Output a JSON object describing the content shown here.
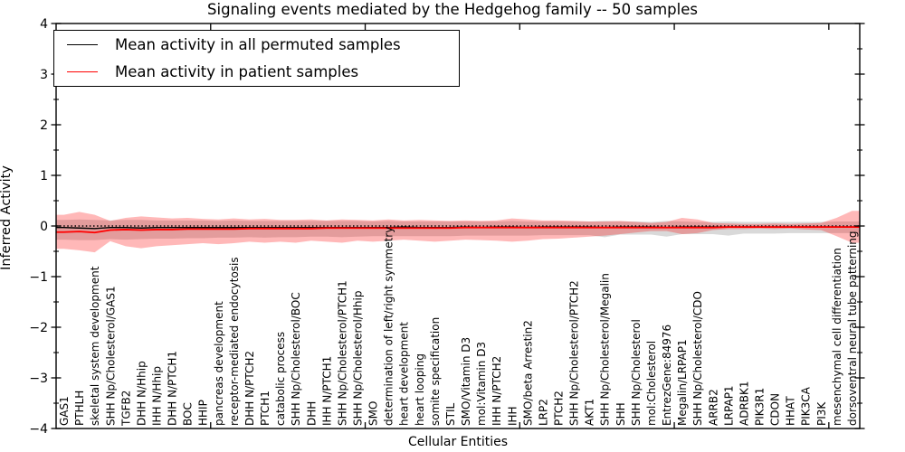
{
  "chart_data": {
    "type": "line",
    "title": "Signaling events mediated by the Hedgehog family -- 50 samples",
    "xlabel": "Cellular Entities",
    "ylabel": "Inferred Activity",
    "ylim": [
      -4,
      4
    ],
    "grid": false,
    "background": "#ffffff",
    "axis_color": "#000000",
    "ytick_labels": [
      "4",
      "3",
      "2",
      "1",
      "0",
      "−1",
      "−2",
      "−3",
      "−4"
    ],
    "ytick_values": [
      4,
      3,
      2,
      1,
      0,
      -1,
      -2,
      -3,
      -4
    ],
    "ytick_minor_step": 0.5,
    "xtick_top_values": [
      10,
      20,
      30,
      40,
      50
    ],
    "legend": {
      "position": "upper-left",
      "entries": [
        {
          "label": "Mean activity in all permuted samples",
          "color": "#000000"
        },
        {
          "label": "Mean activity in patient samples",
          "color": "#ff0000"
        }
      ]
    },
    "categories": [
      "GAS1",
      "PTHLH",
      "skeletal system development",
      "SHH Np/Cholesterol/GAS1",
      "TGFB2",
      "DHH N/Hhip",
      "IHH N/Hhip",
      "DHH N/PTCH1",
      "BOC",
      "HHIP",
      "pancreas development",
      "receptor-mediated endocytosis",
      "DHH N/PTCH2",
      "PTCH1",
      "catabolic process",
      "SHH Np/Cholesterol/BOC",
      "DHH",
      "IHH N/PTCH1",
      "SHH Np/Cholesterol/PTCH1",
      "SHH Np/Cholesterol/Hhip",
      "SMO",
      "determination of left/right symmetry",
      "heart development",
      "heart looping",
      "somite specification",
      "STIL",
      "SMO/Vitamin D3",
      "mol:Vitamin D3",
      "IHH N/PTCH2",
      "IHH",
      "SMO/beta Arrestin2",
      "LRP2",
      "PTCH2",
      "SHH Np/Cholesterol/PTCH2",
      "AKT1",
      "SHH Np/Cholesterol/Megalin",
      "SHH",
      "SHH Np/Cholesterol",
      "mol:Cholesterol",
      "EntrezGene:84976",
      "Megalin/LRPAP1",
      "SHH Np/Cholesterol/CDO",
      "ARRB2",
      "LRPAP1",
      "ADRBK1",
      "PIK3R1",
      "CDON",
      "HHAT",
      "PIK3CA",
      "PI3K",
      "mesenchymal cell differentiation",
      "dorsoventral neural tube patterning"
    ],
    "series": [
      {
        "name": "Mean activity in all permuted samples",
        "color": "#000000",
        "style": "solid",
        "values": [
          -0.03,
          -0.04,
          -0.05,
          -0.03,
          -0.03,
          -0.04,
          -0.03,
          -0.03,
          -0.03,
          -0.03,
          -0.03,
          -0.03,
          -0.03,
          -0.03,
          -0.03,
          -0.03,
          -0.03,
          -0.03,
          -0.03,
          -0.03,
          -0.03,
          -0.03,
          -0.02,
          -0.03,
          -0.03,
          -0.03,
          -0.02,
          -0.03,
          -0.02,
          -0.02,
          -0.03,
          -0.02,
          -0.02,
          -0.02,
          -0.02,
          -0.03,
          -0.02,
          -0.02,
          -0.02,
          -0.03,
          -0.02,
          -0.02,
          -0.02,
          -0.02,
          -0.02,
          -0.02,
          -0.02,
          -0.02,
          -0.02,
          -0.02,
          -0.02,
          -0.02
        ]
      },
      {
        "name": "Mean activity in patient samples",
        "color": "#ff0000",
        "style": "solid",
        "values": [
          -0.12,
          -0.11,
          -0.13,
          -0.08,
          -0.07,
          -0.08,
          -0.07,
          -0.07,
          -0.06,
          -0.06,
          -0.06,
          -0.06,
          -0.05,
          -0.05,
          -0.05,
          -0.05,
          -0.05,
          -0.04,
          -0.04,
          -0.04,
          -0.04,
          -0.04,
          -0.04,
          -0.04,
          -0.04,
          -0.04,
          -0.03,
          -0.03,
          -0.03,
          -0.03,
          -0.03,
          -0.03,
          -0.03,
          -0.03,
          -0.03,
          -0.03,
          -0.03,
          -0.03,
          -0.03,
          -0.03,
          -0.03,
          -0.03,
          -0.03,
          -0.02,
          -0.02,
          -0.02,
          -0.02,
          -0.02,
          -0.02,
          -0.02,
          -0.02,
          -0.02
        ]
      },
      {
        "name": "zero reference",
        "color": "#000000",
        "style": "dotted",
        "constant": 0
      }
    ],
    "bands": [
      {
        "name": "permuted activity range",
        "color": "#787878",
        "opacity": 0.28,
        "top": [
          0.12,
          0.13,
          0.12,
          0.11,
          0.12,
          0.12,
          0.11,
          0.11,
          0.11,
          0.11,
          0.1,
          0.11,
          0.1,
          0.1,
          0.1,
          0.1,
          0.1,
          0.1,
          0.1,
          0.1,
          0.09,
          0.1,
          0.09,
          0.09,
          0.09,
          0.09,
          0.09,
          0.09,
          0.09,
          0.1,
          0.09,
          0.09,
          0.09,
          0.09,
          0.09,
          0.1,
          0.09,
          0.09,
          0.08,
          0.1,
          0.09,
          0.08,
          0.08,
          0.09,
          0.08,
          0.08,
          0.08,
          0.08,
          0.08,
          0.08,
          0.09,
          0.09
        ],
        "bottom": [
          -0.27,
          -0.28,
          -0.28,
          -0.26,
          -0.27,
          -0.26,
          -0.25,
          -0.25,
          -0.24,
          -0.24,
          -0.23,
          -0.23,
          -0.22,
          -0.23,
          -0.22,
          -0.22,
          -0.21,
          -0.21,
          -0.22,
          -0.21,
          -0.2,
          -0.2,
          -0.2,
          -0.2,
          -0.2,
          -0.2,
          -0.19,
          -0.19,
          -0.19,
          -0.19,
          -0.19,
          -0.18,
          -0.18,
          -0.18,
          -0.18,
          -0.22,
          -0.17,
          -0.17,
          -0.17,
          -0.21,
          -0.16,
          -0.16,
          -0.16,
          -0.19,
          -0.15,
          -0.15,
          -0.15,
          -0.14,
          -0.14,
          -0.14,
          -0.14,
          -0.14
        ]
      },
      {
        "name": "patient activity range",
        "color": "#ff0000",
        "opacity": 0.28,
        "top": [
          0.22,
          0.28,
          0.22,
          0.1,
          0.16,
          0.19,
          0.17,
          0.15,
          0.16,
          0.14,
          0.13,
          0.15,
          0.13,
          0.14,
          0.12,
          0.12,
          0.13,
          0.11,
          0.13,
          0.12,
          0.11,
          0.13,
          0.11,
          0.12,
          0.11,
          0.1,
          0.11,
          0.1,
          0.11,
          0.15,
          0.13,
          0.11,
          0.11,
          0.1,
          0.09,
          0.09,
          0.1,
          0.08,
          0.06,
          0.08,
          0.16,
          0.13,
          0.06,
          0.05,
          0.04,
          0.04,
          0.05,
          0.04,
          0.05,
          0.06,
          0.16,
          0.3
        ],
        "bottom": [
          -0.45,
          -0.48,
          -0.52,
          -0.3,
          -0.4,
          -0.44,
          -0.4,
          -0.38,
          -0.36,
          -0.34,
          -0.36,
          -0.34,
          -0.31,
          -0.33,
          -0.31,
          -0.33,
          -0.29,
          -0.31,
          -0.33,
          -0.29,
          -0.31,
          -0.29,
          -0.27,
          -0.29,
          -0.31,
          -0.29,
          -0.27,
          -0.28,
          -0.29,
          -0.31,
          -0.29,
          -0.26,
          -0.25,
          -0.23,
          -0.21,
          -0.19,
          -0.16,
          -0.13,
          -0.1,
          -0.1,
          -0.16,
          -0.14,
          -0.08,
          -0.06,
          -0.06,
          -0.05,
          -0.06,
          -0.05,
          -0.07,
          -0.08,
          -0.2,
          -0.33
        ]
      }
    ]
  }
}
